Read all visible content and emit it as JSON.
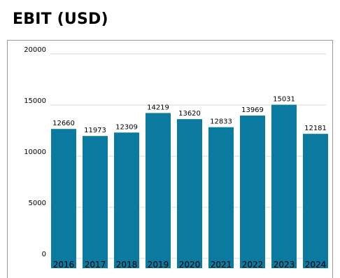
{
  "title": "EBIT (USD)",
  "chart_data": {
    "type": "bar",
    "categories": [
      "2016",
      "2017",
      "2018",
      "2019",
      "2020",
      "2021",
      "2022",
      "2023",
      "2024"
    ],
    "values": [
      12660,
      11973,
      12309,
      14219,
      13620,
      12833,
      13969,
      15031,
      12181
    ],
    "yticks": [
      0,
      5000,
      10000,
      15000,
      20000
    ],
    "ylim": [
      0,
      20000
    ],
    "grid": true,
    "bar_color": "#0a7aa0",
    "grid_color": "#d9d9d9"
  }
}
